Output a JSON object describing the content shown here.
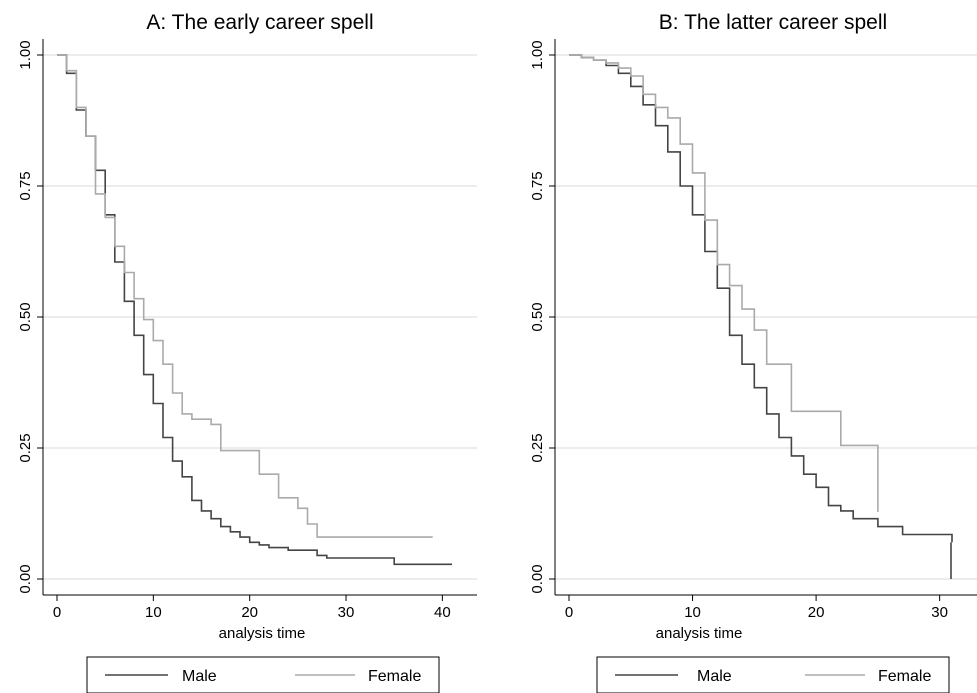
{
  "chart_data": [
    {
      "type": "line",
      "step": true,
      "title": "A: The early career spell",
      "xlabel": "analysis time",
      "ylabel": "",
      "xlim": [
        0,
        41
      ],
      "ylim": [
        0,
        1
      ],
      "xticks": [
        "0",
        "10",
        "20",
        "30",
        "40"
      ],
      "yticks": [
        "0.00",
        "0.25",
        "0.50",
        "0.75",
        "1.00"
      ],
      "grid": true,
      "legend": "bottom",
      "series": [
        {
          "name": "Male",
          "color": "#444444",
          "x": [
            0,
            1,
            2,
            3,
            4,
            5,
            6,
            7,
            8,
            9,
            10,
            11,
            12,
            13,
            14,
            15,
            16,
            17,
            18,
            19,
            20,
            21,
            22,
            24,
            27,
            28,
            35,
            41
          ],
          "y": [
            1.0,
            0.965,
            0.895,
            0.845,
            0.78,
            0.695,
            0.605,
            0.53,
            0.465,
            0.39,
            0.335,
            0.27,
            0.225,
            0.195,
            0.15,
            0.13,
            0.115,
            0.1,
            0.09,
            0.08,
            0.07,
            0.065,
            0.06,
            0.055,
            0.045,
            0.04,
            0.028,
            0.028
          ]
        },
        {
          "name": "Female",
          "color": "#aaaaaa",
          "x": [
            0,
            1,
            2,
            3,
            4,
            5,
            6,
            7,
            8,
            9,
            10,
            11,
            12,
            13,
            14,
            16,
            17,
            21,
            23,
            25,
            26,
            27,
            39
          ],
          "y": [
            1.0,
            0.97,
            0.9,
            0.845,
            0.735,
            0.69,
            0.635,
            0.585,
            0.535,
            0.495,
            0.455,
            0.41,
            0.355,
            0.315,
            0.305,
            0.295,
            0.245,
            0.2,
            0.155,
            0.135,
            0.105,
            0.08,
            0.08
          ]
        }
      ]
    },
    {
      "type": "line",
      "step": true,
      "title": "B: The latter career spell",
      "xlabel": "analysis time",
      "ylabel": "",
      "xlim": [
        0,
        31
      ],
      "ylim": [
        0,
        1
      ],
      "xticks": [
        "0",
        "10",
        "20",
        "30"
      ],
      "yticks": [
        "0.00",
        "0.25",
        "0.50",
        "0.75",
        "1.00"
      ],
      "grid": true,
      "legend": "bottom",
      "series": [
        {
          "name": "Male",
          "color": "#444444",
          "x": [
            0,
            1,
            2,
            3,
            4,
            5,
            6,
            7,
            8,
            9,
            10,
            11,
            12,
            13,
            14,
            15,
            16,
            17,
            18,
            19,
            20,
            21,
            22,
            23,
            24,
            25,
            27,
            31
          ],
          "y": [
            1.0,
            0.995,
            0.99,
            0.98,
            0.965,
            0.94,
            0.905,
            0.865,
            0.815,
            0.75,
            0.695,
            0.625,
            0.555,
            0.465,
            0.41,
            0.365,
            0.315,
            0.27,
            0.235,
            0.2,
            0.175,
            0.14,
            0.13,
            0.115,
            0.115,
            0.1,
            0.085,
            0.07
          ]
        },
        {
          "name": "Female",
          "color": "#aaaaaa",
          "x": [
            0,
            1,
            2,
            3,
            4,
            5,
            6,
            7,
            8,
            9,
            10,
            11,
            12,
            13,
            14,
            15,
            16,
            18,
            22,
            25
          ],
          "y": [
            1.0,
            0.995,
            0.99,
            0.985,
            0.975,
            0.96,
            0.925,
            0.9,
            0.88,
            0.83,
            0.775,
            0.685,
            0.6,
            0.56,
            0.515,
            0.475,
            0.41,
            0.32,
            0.255,
            0.128
          ]
        }
      ]
    }
  ]
}
